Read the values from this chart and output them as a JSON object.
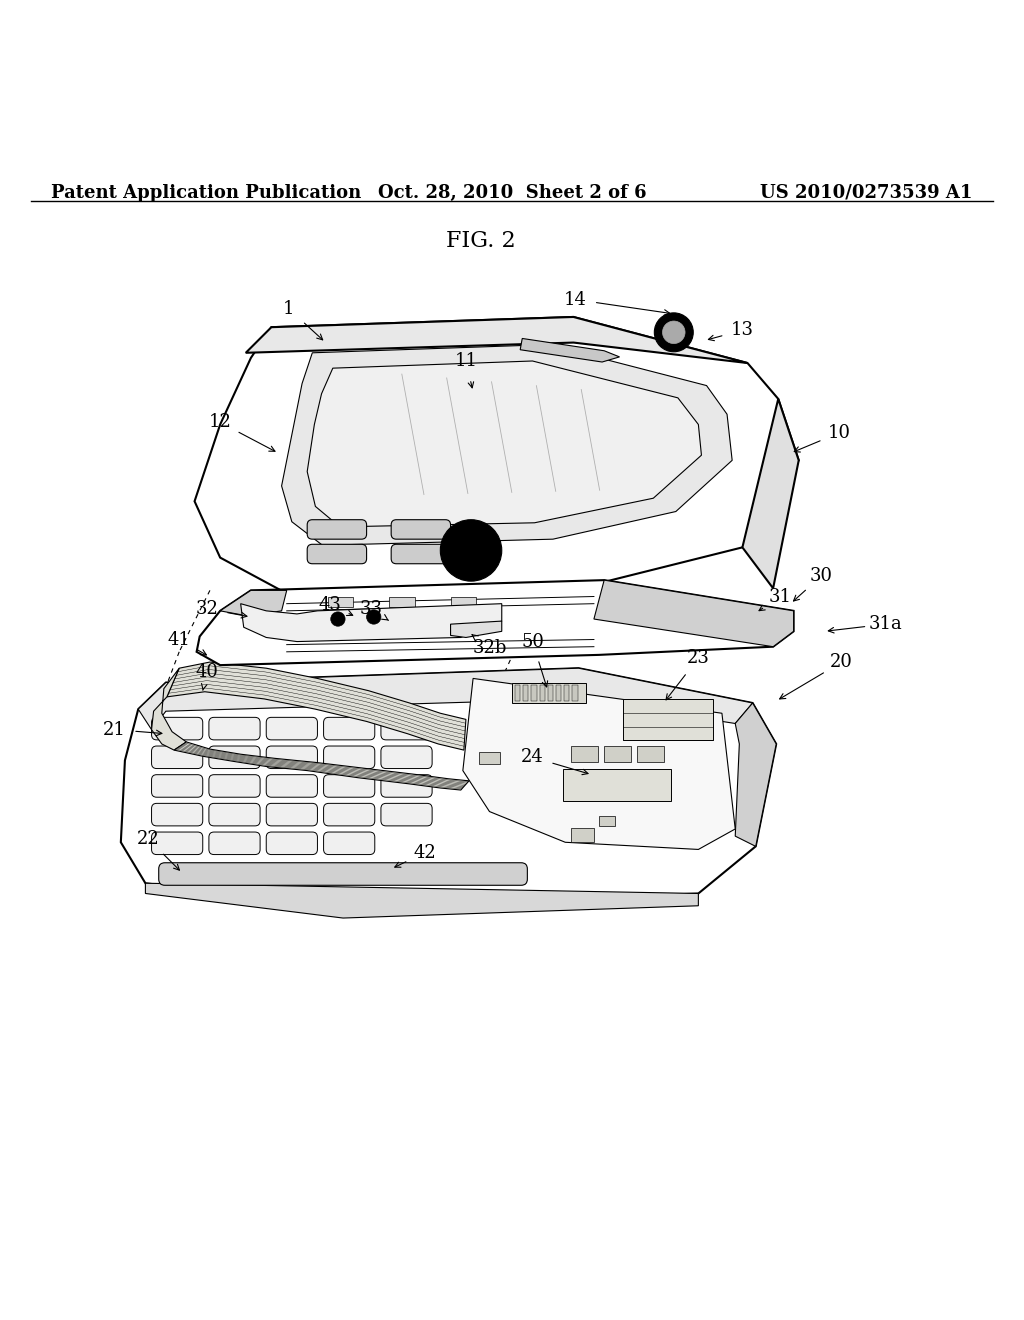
{
  "bg_color": "#ffffff",
  "header_left": "Patent Application Publication",
  "header_center": "Oct. 28, 2010  Sheet 2 of 6",
  "header_right": "US 2010/0273539 A1",
  "fig_label": "FIG. 2",
  "line_color": "#000000",
  "font_size_header": 13,
  "font_size_fig": 16,
  "font_size_label": 13
}
